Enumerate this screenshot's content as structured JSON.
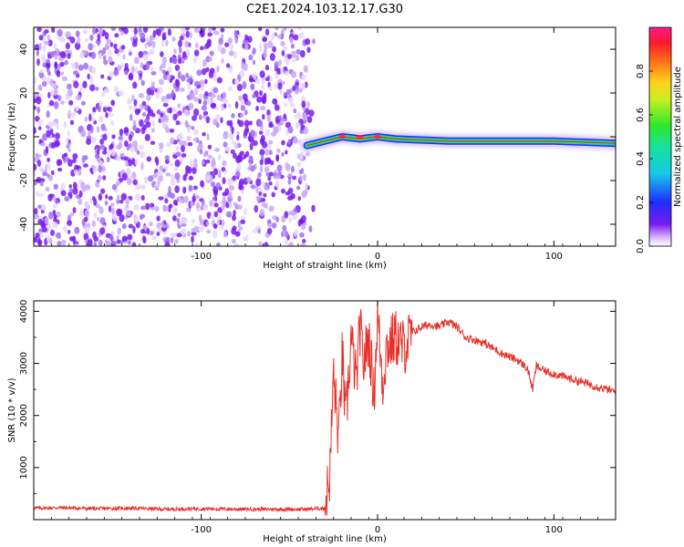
{
  "figure_title": "C2E1.2024.103.12.17.G30",
  "colors": {
    "axis": "#000000",
    "snr_line": "#e8302a",
    "noise_dots": "#7a1cf0",
    "trace_core": "#e0302a"
  },
  "chart_data": [
    {
      "type": "heatmap",
      "title": "C2E1.2024.103.12.17.G30",
      "xlabel": "Height of straight line (km)",
      "ylabel": "Frequency (Hz)",
      "xlim": [
        -195,
        135
      ],
      "ylim": [
        -50,
        50
      ],
      "x_ticks": [
        -100,
        0,
        100
      ],
      "y_ticks": [
        -40,
        -20,
        0,
        20,
        40
      ],
      "colorbar": {
        "label": "Normalized spectral amplitude",
        "range": [
          0,
          1
        ],
        "ticks": [
          0.0,
          0.2,
          0.4,
          0.6,
          0.8
        ],
        "colormap": "rainbow (purple to magenta)"
      },
      "noise_region_x": [
        -195,
        -40
      ],
      "trace": {
        "description_points": [
          {
            "x": -40,
            "freq": -4
          },
          {
            "x": -30,
            "freq": -2
          },
          {
            "x": -20,
            "freq": 0
          },
          {
            "x": -10,
            "freq": -1
          },
          {
            "x": 0,
            "freq": 0
          },
          {
            "x": 10,
            "freq": -1
          },
          {
            "x": 40,
            "freq": -2
          },
          {
            "x": 80,
            "freq": -2
          },
          {
            "x": 100,
            "freq": -2
          },
          {
            "x": 135,
            "freq": -3
          }
        ],
        "hotspots_x": [
          -20,
          -10,
          0
        ]
      },
      "grid": false
    },
    {
      "type": "line",
      "xlabel": "Height of straight line (km)",
      "ylabel": "SNR (10 * v/v)",
      "xlim": [
        -195,
        135
      ],
      "ylim": [
        0,
        4200
      ],
      "x_ticks": [
        -100,
        0,
        100
      ],
      "y_ticks": [
        1000,
        2000,
        3000,
        4000
      ],
      "grid": false,
      "series": [
        {
          "x": [
            -195,
            -180,
            -160,
            -140,
            -120,
            -100,
            -80,
            -60,
            -40,
            -30,
            -27,
            -25,
            -22,
            -20,
            -18,
            -15,
            -12,
            -10,
            -8,
            -5,
            -2,
            0,
            3,
            5,
            10,
            15,
            20,
            25,
            30,
            35,
            40,
            45,
            50,
            60,
            70,
            80,
            85,
            88,
            90,
            95,
            100,
            110,
            120,
            135
          ],
          "y": [
            220,
            230,
            210,
            220,
            200,
            210,
            200,
            200,
            200,
            220,
            900,
            2800,
            1500,
            3200,
            1800,
            3500,
            2600,
            3700,
            3000,
            3500,
            2400,
            3900,
            2600,
            3300,
            3500,
            3300,
            3600,
            3700,
            3750,
            3700,
            3800,
            3700,
            3500,
            3400,
            3200,
            3050,
            2900,
            2500,
            2950,
            2850,
            2800,
            2700,
            2600,
            2450
          ]
        }
      ]
    }
  ]
}
